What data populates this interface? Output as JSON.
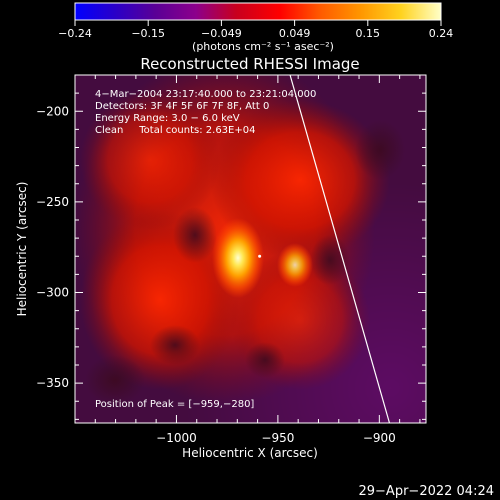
{
  "chart_data": {
    "type": "heatmap",
    "title": "Reconstructed RHESSI Image",
    "xlabel": "Heliocentric X (arcsec)",
    "ylabel": "Heliocentric Y (arcsec)",
    "xlim": [
      -1050,
      -877
    ],
    "ylim": [
      -372,
      -180
    ],
    "x_ticks": [
      {
        "value": -1000,
        "label": "−1000"
      },
      {
        "value": -950,
        "label": "−950"
      },
      {
        "value": -900,
        "label": "−900"
      }
    ],
    "y_ticks": [
      {
        "value": -200,
        "label": "−200"
      },
      {
        "value": -250,
        "label": "−250"
      },
      {
        "value": -300,
        "label": "−300"
      },
      {
        "value": -350,
        "label": "−350"
      }
    ],
    "colorbar": {
      "range": [
        -0.24,
        0.24
      ],
      "tick_labels": [
        "−0.24",
        "−0.15",
        "−0.049",
        "0.049",
        "0.15",
        "0.24"
      ],
      "unit_label": "(photons cm⁻² s⁻¹ asec⁻²)",
      "colors": [
        "#0000ff",
        "#2a00c8",
        "#5a0096",
        "#8c008c",
        "#c8001e",
        "#ff0000",
        "#ff5a00",
        "#ff9600",
        "#ffd21e",
        "#ffffc8"
      ]
    },
    "annotations": [
      "4−Mar−2004 23:17:40.000 to 23:21:04.000",
      "Detectors: 3F 4F 5F 6F 7F 8F, Att 0",
      "Energy Range: 3.0 − 6.0 keV",
      "Clean     Total counts: 2.63E+04"
    ],
    "peak_label": "Position of Peak = [−959,−280]",
    "peak": {
      "x": -959,
      "y": -280,
      "value": 0.24
    },
    "limb_line": [
      {
        "x": -944,
        "y": -180
      },
      {
        "x": -895,
        "y": -372
      }
    ],
    "limb_color": "#ffffff"
  },
  "timestamp": "29−Apr−2022 04:24"
}
